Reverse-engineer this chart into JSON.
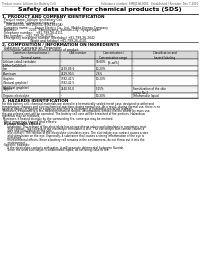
{
  "header_left": "Product name: Lithium Ion Battery Cell",
  "header_right": "Substance number: SMBJ13A-0001   Established / Revision: Dec.7,2010",
  "title": "Safety data sheet for chemical products (SDS)",
  "section1_title": "1. PRODUCT AND COMPANY IDENTIFICATION",
  "section1_lines": [
    " ·Product name: Lithium Ion Battery Cell",
    " ·Product code: Cylindrical-type cell",
    "    (IHR18650U, IHR18650L, IHR18650A)",
    " ·Company name:      Sanyo Electric Co., Ltd., Mobile Energy Company",
    " ·Address:            2201  Kannonyama, Sumoto-City, Hyogo, Japan",
    " ·Telephone number:   +81-799-26-4111",
    " ·Fax number:   +81-799-26-4120",
    " ·Emergency telephone number (Weekday) +81-799-26-2042",
    "                            (Night and holiday) +81-799-26-4101"
  ],
  "section2_title": "2. COMPOSITION / INFORMATION ON INGREDIENTS",
  "section2_lines": [
    " ·Substance or preparation: Preparation",
    " ·Information about the chemical nature of product:"
  ],
  "table_col_headers_row1": [
    "Common chemical name /",
    "CAS number",
    "Concentration /",
    "Classification and"
  ],
  "table_col_headers_row2": [
    "General name",
    "",
    "Concentration range",
    "hazard labeling"
  ],
  "table_col_headers_row3": [
    "",
    "",
    "[%-wt%]",
    ""
  ],
  "table_rows": [
    [
      "Lithium cobalt tantalate",
      "-",
      "30-60%",
      "-"
    ],
    [
      "(LiMn+CoO2(Co))",
      "",
      "",
      ""
    ],
    [
      "Iron",
      "7439-89-6",
      "10-20%",
      "-"
    ],
    [
      "Aluminum",
      "7429-90-5",
      "2-6%",
      "-"
    ],
    [
      "Graphite",
      "",
      "10-20%",
      "-"
    ],
    [
      "(Natural graphite)",
      "7782-42-5",
      "",
      ""
    ],
    [
      "(Artificial graphite)",
      "7782-42-5",
      "",
      ""
    ],
    [
      "Copper",
      "7440-50-8",
      "5-15%",
      "Sensitization of the skin"
    ],
    [
      "",
      "",
      "",
      "group No.2"
    ],
    [
      "Organic electrolyte",
      "-",
      "10-20%",
      "Inflammable liquid"
    ]
  ],
  "section3_title": "3. HAZARDS IDENTIFICATION",
  "section3_text_lines": [
    "For this battery cell, chemical materials are stored in a hermetically sealed metal case, designed to withstand",
    "temperature changes and electrochemical reactions during normal use. As a result, during normal use, there is no",
    "physical danger of ignition or explosion and there is no danger of hazardous materials leakage.",
    " Moreover, if exposed to a fire, added mechanical shocks, decomposed, written electro whose by mass use,",
    "the gas release vent will be operated. The battery cell case will be breached of fire-portions. Hazardous",
    "materials may be released.",
    " Moreover, if heated strongly by the surrounding fire, some gas may be emitted."
  ],
  "section3_bullet1": " ·Most important hazard and effects:",
  "section3_human_header": "Human health effects:",
  "section3_human_lines": [
    "    Inhalation: The release of the electrolyte has an anesthesia action and stimulates in respiratory tract.",
    "    Skin contact: The release of the electrolyte stimulates a skin. The electrolyte skin contact causes a",
    "    sore and stimulation on the skin.",
    "    Eye contact: The release of the electrolyte stimulates eyes. The electrolyte eye contact causes a sore",
    "    and stimulation on the eye. Especially, a substance that causes a strong inflammation of the eye is",
    "    contained.",
    "    Environmental effects: Since a battery cell remains in the environment, do not throw out it into the",
    "    environment."
  ],
  "section3_bullet2": " ·Specific hazards:",
  "section3_specific_lines": [
    "    If the electrolyte contacts with water, it will generate detrimental hydrogen fluoride.",
    "    Since the used electrolyte is inflammable liquid, do not bring close to fire."
  ],
  "bg_color": "#ffffff",
  "table_header_bg": "#d8d8d8",
  "table_row_bg_odd": "#f2f2f2",
  "table_row_bg_even": "#ffffff",
  "border_color": "#000000"
}
